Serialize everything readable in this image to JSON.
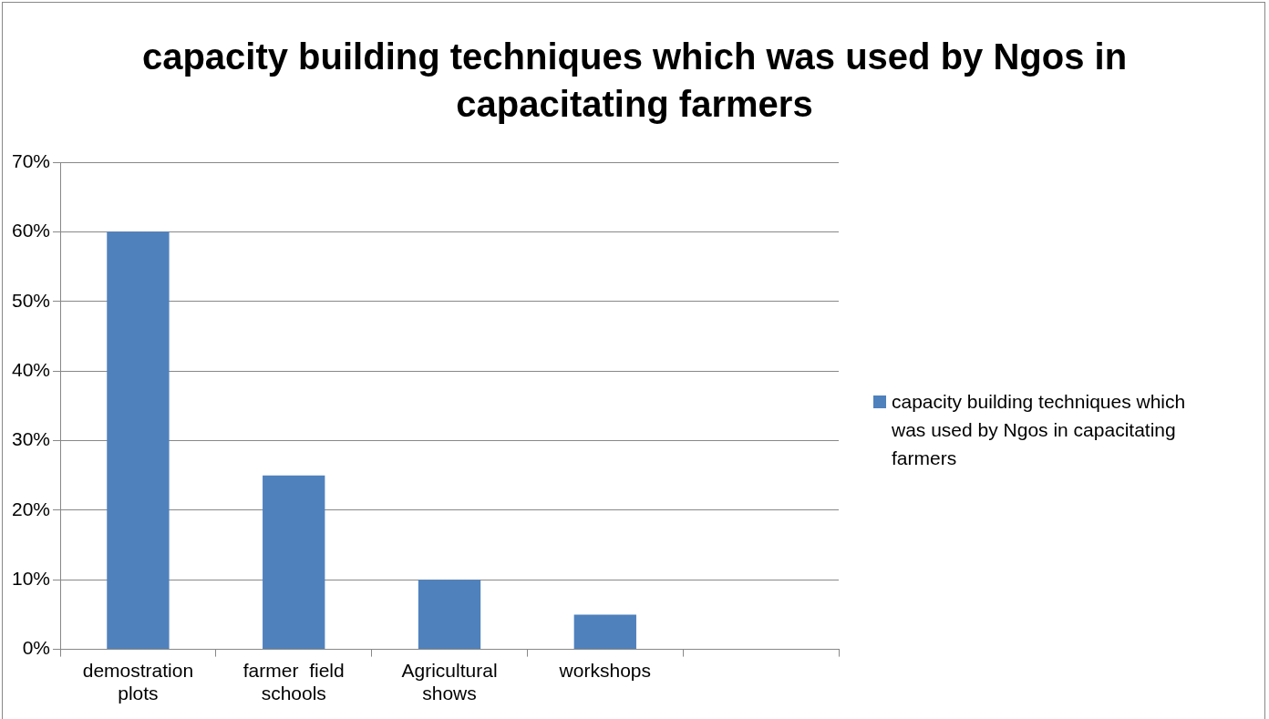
{
  "chart_data": {
    "type": "bar",
    "title": "capacity building techniques which was used by Ngos in capacitating farmers",
    "categories": [
      "demostration plots",
      "farmer  field schools",
      "Agricultural shows",
      "workshops",
      null
    ],
    "series": [
      {
        "name": "capacity building techniques which was used by Ngos in capacitating farmers",
        "color": "#4f81bd",
        "values": [
          60,
          25,
          10,
          5,
          null
        ]
      }
    ],
    "ylim": [
      0,
      70
    ],
    "yticks": [
      {
        "value": 0,
        "label": "0%"
      },
      {
        "value": 10,
        "label": "10%"
      },
      {
        "value": 20,
        "label": "20%"
      },
      {
        "value": 30,
        "label": "30%"
      },
      {
        "value": 40,
        "label": "40%"
      },
      {
        "value": 50,
        "label": "50%"
      },
      {
        "value": 60,
        "label": "60%"
      },
      {
        "value": 70,
        "label": "70%"
      }
    ],
    "grid": "y",
    "legend": "right"
  }
}
